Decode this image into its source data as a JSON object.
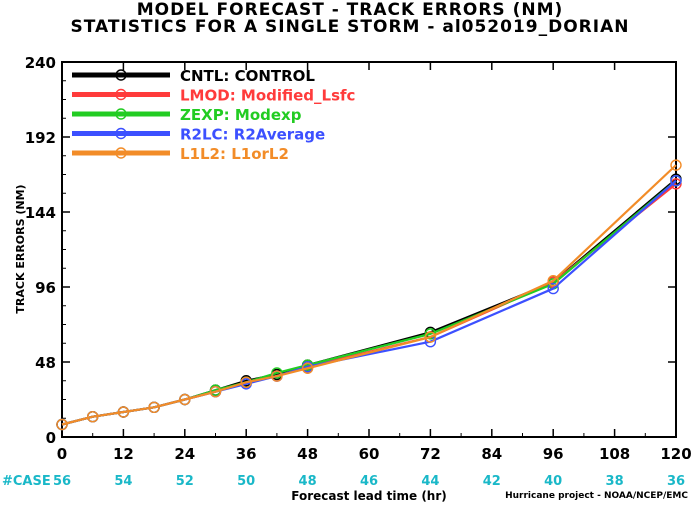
{
  "chart_data": {
    "type": "line",
    "title": "MODEL FORECAST - TRACK ERRORS (NM)",
    "subtitle": "STATISTICS FOR A SINGLE STORM - al052019_DORIAN",
    "xlabel": "Forecast lead time (hr)",
    "ylabel": "TRACK ERRORS (NM)",
    "xlim": [
      0,
      120
    ],
    "ylim": [
      0,
      240
    ],
    "xticks": [
      0,
      12,
      24,
      36,
      48,
      60,
      72,
      84,
      96,
      108,
      120
    ],
    "yticks": [
      0,
      48,
      96,
      144,
      192,
      240
    ],
    "grid": false,
    "legend_position": "top-left",
    "case_label": "#CASE",
    "cases": [
      {
        "x": 0,
        "n": "56"
      },
      {
        "x": 12,
        "n": "54"
      },
      {
        "x": 24,
        "n": "52"
      },
      {
        "x": 36,
        "n": "50"
      },
      {
        "x": 48,
        "n": "48"
      },
      {
        "x": 60,
        "n": "46"
      },
      {
        "x": 72,
        "n": "44"
      },
      {
        "x": 84,
        "n": "42"
      },
      {
        "x": 96,
        "n": "40"
      },
      {
        "x": 108,
        "n": "38"
      },
      {
        "x": 120,
        "n": "36"
      }
    ],
    "case_color": "#1ab8c8",
    "x": [
      0,
      6,
      12,
      18,
      24,
      30,
      36,
      42,
      48,
      72,
      96,
      120
    ],
    "series": [
      {
        "name": "CNTL: CONTROL",
        "color": "#000000",
        "values": [
          8,
          13,
          16,
          19,
          24,
          30,
          36,
          40,
          46,
          67,
          99,
          165
        ]
      },
      {
        "name": "LMOD: Modified_Lsfc",
        "color": "#ff3b3b",
        "values": [
          8,
          13,
          16,
          19,
          24,
          29,
          35,
          39,
          45,
          64,
          99,
          162
        ]
      },
      {
        "name": "ZEXP: Modexp",
        "color": "#22cc22",
        "values": [
          8,
          13,
          16,
          19,
          24,
          30,
          35,
          41,
          46,
          66,
          98,
          164
        ]
      },
      {
        "name": "R2LC: R2Average",
        "color": "#3c50ff",
        "values": [
          8,
          13,
          16,
          19,
          24,
          29,
          34,
          39,
          45,
          61,
          95,
          164
        ]
      },
      {
        "name": "L1L2: L1orL2",
        "color": "#f28c28",
        "values": [
          8,
          13,
          16,
          19,
          24,
          29,
          35,
          39,
          44,
          64,
          100,
          174
        ]
      }
    ]
  },
  "footer": {
    "credit": "Hurricane project - NOAA/NCEP/EMC"
  }
}
